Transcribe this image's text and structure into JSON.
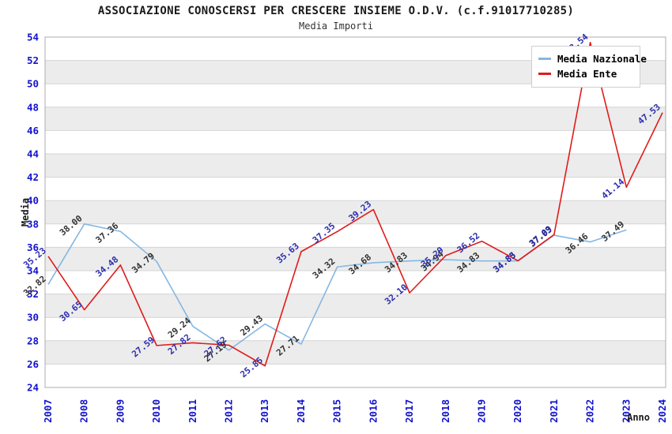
{
  "title": "ASSOCIAZIONE CONOSCERSI PER CRESCERE INSIEME O.D.V. (c.f.91017710285)",
  "subtitle": "Media Importi",
  "legend": [
    {
      "label": "Media Nazionale",
      "color": "#85b7e2"
    },
    {
      "label": "Media Ente",
      "color": "#e01b1b"
    }
  ],
  "colors": {
    "tick_label": "#1313cc",
    "grid_line": "#d4d4d4",
    "band_gray": "#ececec",
    "band_white": "#ffffff",
    "plot_border": "#aeaeae",
    "nazionale_line": "#85b7e2",
    "nazionale_value_label": "#333333",
    "ente_line": "#e01b1b",
    "ente_value_label": "#2e2eb0"
  },
  "chart_data": {
    "type": "line",
    "title": "ASSOCIAZIONE CONOSCERSI PER CRESCERE INSIEME O.D.V. (c.f.91017710285)",
    "subtitle": "Media Importi",
    "xlabel": "Anno",
    "ylabel": "Media",
    "ylim": [
      24,
      54
    ],
    "ytick_step": 2,
    "grid": "horizontal-bands",
    "legend_position": "top-right",
    "x": [
      2007,
      2008,
      2009,
      2010,
      2011,
      2012,
      2013,
      2014,
      2015,
      2016,
      2017,
      2018,
      2019,
      2020,
      2021,
      2022,
      2023,
      2024
    ],
    "series": [
      {
        "name": "Media Nazionale",
        "color": "#85b7e2",
        "label_color": "#333333",
        "values": [
          32.82,
          38.0,
          37.36,
          34.79,
          29.24,
          27.19,
          29.43,
          27.71,
          34.32,
          34.68,
          34.83,
          34.94,
          34.83,
          34.83,
          37.03,
          36.46,
          37.49,
          null
        ]
      },
      {
        "name": "Media Ente",
        "color": "#e01b1b",
        "label_color": "#2e2eb0",
        "values": [
          35.23,
          30.65,
          34.48,
          27.59,
          27.82,
          27.62,
          25.85,
          35.63,
          37.35,
          39.23,
          32.1,
          35.29,
          36.52,
          34.85,
          37.09,
          53.54,
          41.14,
          47.53
        ]
      }
    ]
  }
}
